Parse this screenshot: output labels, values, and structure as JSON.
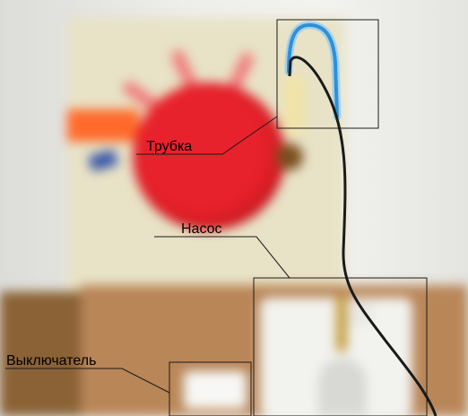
{
  "labels": {
    "tube": "Трубка",
    "pump": "Насос",
    "switch": "Выключатель"
  },
  "colors": {
    "pump_red": "#e8222c",
    "tube_blue": "#2f8fd8",
    "cable": "#1a1a1a",
    "table": "#b98658"
  }
}
